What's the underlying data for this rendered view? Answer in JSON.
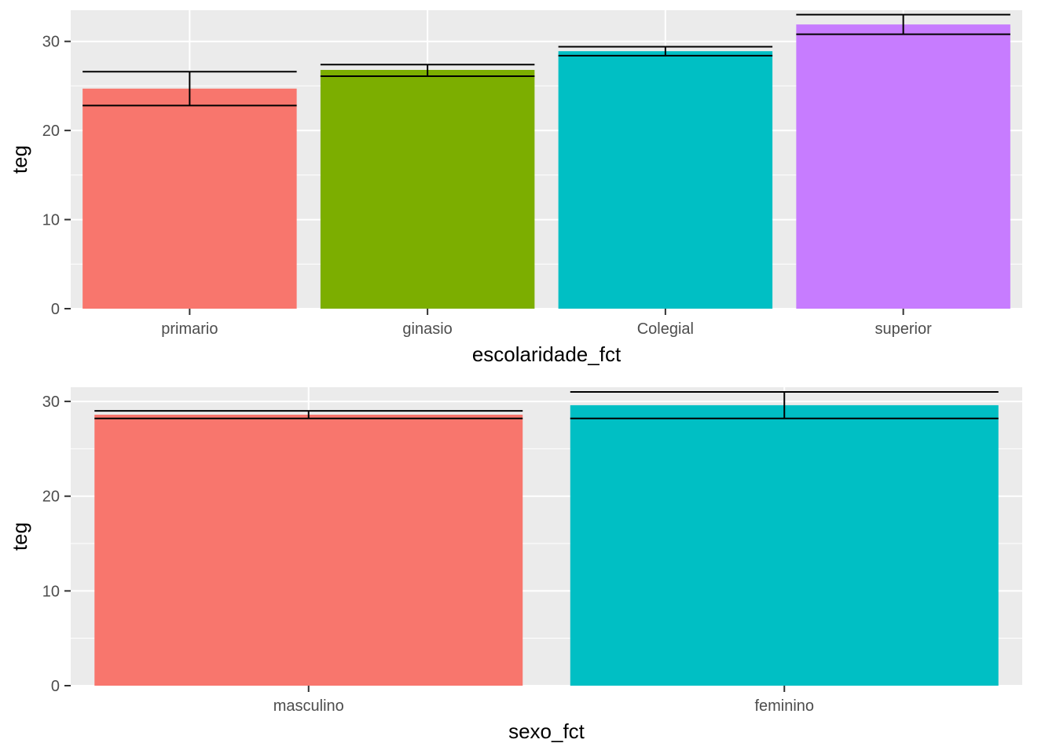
{
  "chart_data": [
    {
      "type": "bar",
      "xlabel": "escolaridade_fct",
      "ylabel": "teg",
      "categories": [
        "primario",
        "ginasio",
        "Colegial",
        "superior"
      ],
      "values": [
        24.7,
        26.8,
        28.9,
        31.9
      ],
      "error_low": [
        22.8,
        26.1,
        28.4,
        30.8
      ],
      "error_high": [
        26.6,
        27.4,
        29.4,
        33.0
      ],
      "colors": [
        "#F8766D",
        "#7CAE00",
        "#00BFC4",
        "#C77CFF"
      ],
      "ylim": [
        0,
        33.5
      ],
      "yticks": [
        0,
        10,
        20,
        30
      ],
      "grid": true,
      "legend": "none"
    },
    {
      "type": "bar",
      "xlabel": "sexo_fct",
      "ylabel": "teg",
      "categories": [
        "masculino",
        "feminino"
      ],
      "values": [
        28.6,
        29.6
      ],
      "error_low": [
        28.2,
        28.2
      ],
      "error_high": [
        29.0,
        31.0
      ],
      "colors": [
        "#F8766D",
        "#00BFC4"
      ],
      "ylim": [
        0,
        31.5
      ],
      "yticks": [
        0,
        10,
        20,
        30
      ],
      "grid": true,
      "legend": "none"
    }
  ]
}
